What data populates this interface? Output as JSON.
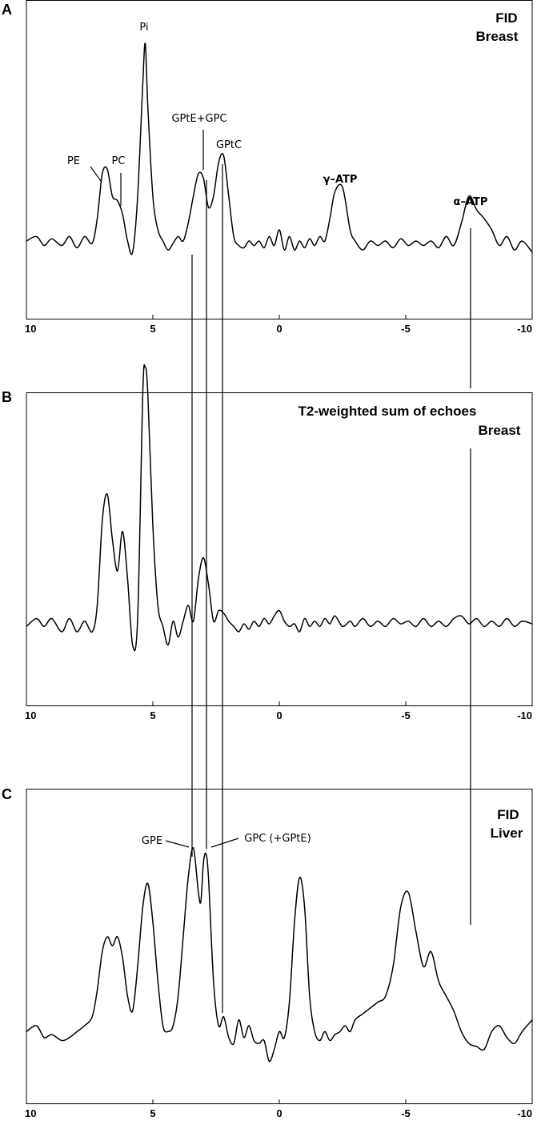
{
  "colors": {
    "line": "#000000",
    "background": "#ffffff"
  },
  "chart_data": [
    {
      "type": "line",
      "panel": "A",
      "title_lines": [
        "FID",
        "Breast"
      ],
      "xlabel": "",
      "ylabel": "",
      "xlim": [
        10,
        -10
      ],
      "x_ticks": [
        10,
        5,
        0,
        -5,
        -10
      ],
      "x_tick_labels": [
        "10",
        "5",
        "0",
        "-5",
        "-10"
      ],
      "grid": false,
      "peak_labels": [
        {
          "text": "Pi",
          "x": 5.3
        },
        {
          "text": "PE",
          "x": 6.8
        },
        {
          "text": "PC",
          "x": 6.3
        },
        {
          "text": "GPtE+GPC",
          "x": 3.0
        },
        {
          "text": "GPtC",
          "x": 2.2
        },
        {
          "text": "γ–ATP",
          "x": -2.5
        },
        {
          "text": "α–ATP",
          "x": -7.5
        }
      ],
      "series": [
        {
          "x": [
            10.0,
            9.6,
            9.3,
            9.0,
            8.6,
            8.3,
            8.0,
            7.7,
            7.4,
            7.2,
            7.0,
            6.8,
            6.6,
            6.4,
            6.2,
            6.0,
            5.8,
            5.6,
            5.4,
            5.3,
            5.2,
            5.0,
            4.8,
            4.6,
            4.4,
            4.2,
            4.0,
            3.8,
            3.6,
            3.4,
            3.2,
            3.0,
            2.8,
            2.6,
            2.4,
            2.2,
            2.0,
            1.8,
            1.6,
            1.4,
            1.2,
            1.0,
            0.8,
            0.6,
            0.4,
            0.2,
            0.0,
            -0.2,
            -0.4,
            -0.6,
            -0.8,
            -1.0,
            -1.2,
            -1.4,
            -1.6,
            -1.8,
            -2.0,
            -2.2,
            -2.5,
            -2.8,
            -3.0,
            -3.3,
            -3.6,
            -3.9,
            -4.2,
            -4.5,
            -4.8,
            -5.1,
            -5.4,
            -5.7,
            -6.0,
            -6.3,
            -6.6,
            -6.9,
            -7.2,
            -7.5,
            -7.8,
            -8.1,
            -8.4,
            -8.7,
            -9.0,
            -9.3,
            -9.6,
            -10.0
          ],
          "values": [
            0.1,
            0.12,
            0.08,
            0.11,
            0.08,
            0.12,
            0.07,
            0.12,
            0.09,
            0.2,
            0.4,
            0.42,
            0.3,
            0.28,
            0.22,
            0.1,
            0.05,
            0.3,
            0.8,
            0.98,
            0.7,
            0.3,
            0.15,
            0.1,
            0.06,
            0.09,
            0.12,
            0.1,
            0.18,
            0.3,
            0.4,
            0.38,
            0.25,
            0.3,
            0.45,
            0.48,
            0.3,
            0.12,
            0.08,
            0.07,
            0.1,
            0.08,
            0.1,
            0.07,
            0.12,
            0.08,
            0.15,
            0.06,
            0.12,
            0.06,
            0.1,
            0.07,
            0.11,
            0.08,
            0.12,
            0.1,
            0.2,
            0.32,
            0.34,
            0.15,
            0.1,
            0.06,
            0.1,
            0.08,
            0.1,
            0.07,
            0.11,
            0.08,
            0.1,
            0.08,
            0.1,
            0.07,
            0.12,
            0.08,
            0.18,
            0.3,
            0.24,
            0.2,
            0.15,
            0.08,
            0.12,
            0.06,
            0.1,
            0.05
          ]
        }
      ]
    },
    {
      "type": "line",
      "panel": "B",
      "title_lines": [
        "T2-weighted sum of echoes",
        "Breast"
      ],
      "xlabel": "",
      "ylabel": "",
      "xlim": [
        10,
        -10
      ],
      "x_ticks": [
        10,
        5,
        0,
        -5,
        -10
      ],
      "x_tick_labels": [
        "10",
        "5",
        "0",
        "-5",
        "-10"
      ],
      "grid": false,
      "series": [
        {
          "x": [
            10.0,
            9.6,
            9.3,
            9.0,
            8.6,
            8.3,
            8.0,
            7.7,
            7.4,
            7.2,
            7.0,
            6.8,
            6.6,
            6.4,
            6.2,
            6.0,
            5.8,
            5.6,
            5.4,
            5.3,
            5.2,
            5.0,
            4.8,
            4.6,
            4.4,
            4.2,
            4.0,
            3.8,
            3.6,
            3.4,
            3.2,
            3.0,
            2.8,
            2.6,
            2.4,
            2.2,
            2.0,
            1.8,
            1.6,
            1.4,
            1.2,
            1.0,
            0.8,
            0.6,
            0.4,
            0.2,
            0.0,
            -0.2,
            -0.4,
            -0.6,
            -0.8,
            -1.0,
            -1.2,
            -1.4,
            -1.6,
            -1.8,
            -2.0,
            -2.2,
            -2.5,
            -2.8,
            -3.0,
            -3.3,
            -3.6,
            -3.9,
            -4.2,
            -4.5,
            -4.8,
            -5.1,
            -5.4,
            -5.7,
            -6.0,
            -6.3,
            -6.6,
            -6.9,
            -7.2,
            -7.5,
            -7.8,
            -8.1,
            -8.4,
            -8.7,
            -9.0,
            -9.3,
            -9.6,
            -10.0
          ],
          "values": [
            0.12,
            0.15,
            0.12,
            0.15,
            0.1,
            0.15,
            0.1,
            0.14,
            0.1,
            0.2,
            0.52,
            0.62,
            0.45,
            0.33,
            0.48,
            0.3,
            0.05,
            0.15,
            1.0,
            1.1,
            1.0,
            0.5,
            0.2,
            0.12,
            0.05,
            0.14,
            0.08,
            0.14,
            0.2,
            0.14,
            0.3,
            0.38,
            0.28,
            0.14,
            0.18,
            0.17,
            0.14,
            0.12,
            0.1,
            0.13,
            0.11,
            0.14,
            0.12,
            0.15,
            0.13,
            0.16,
            0.18,
            0.14,
            0.12,
            0.13,
            0.1,
            0.15,
            0.12,
            0.14,
            0.12,
            0.15,
            0.13,
            0.16,
            0.12,
            0.14,
            0.12,
            0.15,
            0.12,
            0.14,
            0.12,
            0.15,
            0.13,
            0.14,
            0.12,
            0.15,
            0.12,
            0.14,
            0.12,
            0.15,
            0.16,
            0.13,
            0.15,
            0.12,
            0.14,
            0.12,
            0.15,
            0.12,
            0.14,
            0.13
          ]
        }
      ]
    },
    {
      "type": "line",
      "panel": "C",
      "title_lines": [
        "FID",
        "Liver"
      ],
      "xlabel": "",
      "ylabel": "",
      "xlim": [
        10,
        -10
      ],
      "x_ticks": [
        10,
        5,
        0,
        -5,
        -10
      ],
      "x_tick_labels": [
        "10",
        "5",
        "0",
        "-5",
        "-10"
      ],
      "grid": false,
      "peak_labels": [
        {
          "text": "GPE",
          "x": 3.4
        },
        {
          "text": "GPC (+GPtE)",
          "x": 2.9
        }
      ],
      "series": [
        {
          "x": [
            10.0,
            9.6,
            9.3,
            9.0,
            8.6,
            8.3,
            8.0,
            7.7,
            7.4,
            7.2,
            7.0,
            6.8,
            6.6,
            6.4,
            6.2,
            6.0,
            5.8,
            5.6,
            5.4,
            5.2,
            5.0,
            4.8,
            4.6,
            4.4,
            4.2,
            4.0,
            3.8,
            3.6,
            3.4,
            3.2,
            3.1,
            3.0,
            2.9,
            2.8,
            2.6,
            2.4,
            2.2,
            2.0,
            1.8,
            1.6,
            1.4,
            1.2,
            1.0,
            0.8,
            0.6,
            0.4,
            0.2,
            0.0,
            -0.2,
            -0.4,
            -0.6,
            -0.8,
            -1.0,
            -1.2,
            -1.4,
            -1.6,
            -1.8,
            -2.0,
            -2.2,
            -2.4,
            -2.6,
            -2.8,
            -3.0,
            -3.3,
            -3.6,
            -3.9,
            -4.2,
            -4.5,
            -4.8,
            -5.1,
            -5.4,
            -5.7,
            -6.0,
            -6.3,
            -6.6,
            -6.9,
            -7.2,
            -7.5,
            -7.8,
            -8.1,
            -8.4,
            -8.7,
            -9.0,
            -9.3,
            -9.6,
            -10.0
          ],
          "values": [
            0.08,
            0.1,
            0.06,
            0.07,
            0.05,
            0.06,
            0.08,
            0.1,
            0.13,
            0.22,
            0.35,
            0.4,
            0.37,
            0.4,
            0.33,
            0.2,
            0.15,
            0.3,
            0.5,
            0.58,
            0.45,
            0.25,
            0.1,
            0.08,
            0.1,
            0.2,
            0.4,
            0.6,
            0.7,
            0.55,
            0.52,
            0.65,
            0.68,
            0.6,
            0.25,
            0.1,
            0.13,
            0.06,
            0.04,
            0.12,
            0.06,
            0.1,
            0.05,
            0.04,
            0.05,
            -0.02,
            0.02,
            0.08,
            0.06,
            0.18,
            0.45,
            0.6,
            0.5,
            0.2,
            0.08,
            0.05,
            0.08,
            0.05,
            0.07,
            0.08,
            0.1,
            0.08,
            0.12,
            0.14,
            0.16,
            0.18,
            0.2,
            0.3,
            0.5,
            0.55,
            0.42,
            0.3,
            0.35,
            0.25,
            0.2,
            0.15,
            0.08,
            0.04,
            0.03,
            0.02,
            0.08,
            0.1,
            0.06,
            0.04,
            0.08,
            0.12
          ]
        }
      ]
    }
  ]
}
